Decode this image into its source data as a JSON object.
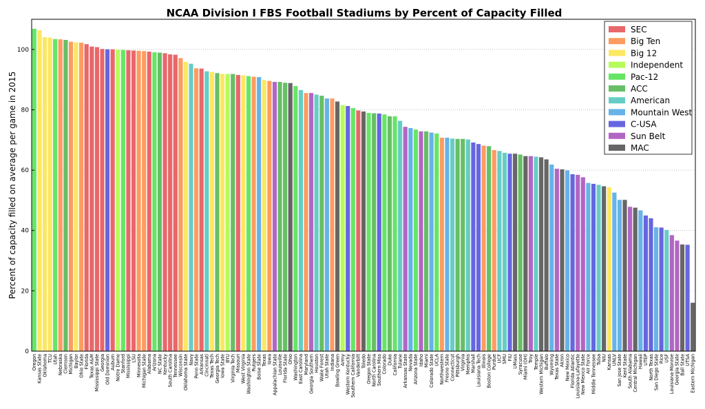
{
  "chart_data": {
    "type": "bar",
    "title": "NCAA Division I FBS Football Stadiums by Percent of Capacity Filled",
    "xlabel": "",
    "ylabel": "Percent of capacity filled on average per game in 2015",
    "ylim": [
      0,
      110
    ],
    "yticks": [
      0,
      20,
      40,
      60,
      80,
      100
    ],
    "grid": "horizontal dotted",
    "legend_placement": "top-right",
    "legend": [
      {
        "name": "SEC",
        "color": "#e8676a"
      },
      {
        "name": "Big Ten",
        "color": "#fd9c61"
      },
      {
        "name": "Big 12",
        "color": "#fce762"
      },
      {
        "name": "Independent",
        "color": "#b5fc5b"
      },
      {
        "name": "Pac-12",
        "color": "#66e566"
      },
      {
        "name": "ACC",
        "color": "#66bf66"
      },
      {
        "name": "American",
        "color": "#66cdc6"
      },
      {
        "name": "Mountain West",
        "color": "#66b3e8"
      },
      {
        "name": "C-USA",
        "color": "#6666e0"
      },
      {
        "name": "Sun Belt",
        "color": "#b266c4"
      },
      {
        "name": "MAC",
        "color": "#666666"
      }
    ],
    "categories": [
      "Oregon",
      "Kansas State",
      "Oklahoma",
      "TCU",
      "Utah",
      "Nebraska",
      "Clemson",
      "Michigan",
      "Baylor",
      "Ohio State",
      "Florida",
      "Texas A&M",
      "Mississippi State",
      "Georgia",
      "Old Dominion",
      "Auburn",
      "Notre Dame",
      "Stanford",
      "Mississippi",
      "LSU",
      "Minnesota",
      "Michigan State",
      "Alabama",
      "Arizona",
      "NC State",
      "Kentucky",
      "South Carolina",
      "Tennessee",
      "Wisconsin",
      "Oklahoma State",
      "Navy",
      "Penn State",
      "Arkansas",
      "Cincinnati",
      "Texas Tech",
      "Georgia Tech",
      "Iowa State",
      "BYU",
      "Virginia Tech",
      "Missouri",
      "West Virginia",
      "Washington State",
      "Rutgers",
      "Boise State",
      "Texas",
      "Iowa",
      "Appalachian State",
      "Louisville",
      "Florida State",
      "Ohio",
      "Washington",
      "East Carolina",
      "Maryland",
      "Georgia Southern",
      "Houston",
      "Wake Forest",
      "Utah State",
      "Indiana",
      "Bowling Green",
      "Army",
      "Western Kentucky",
      "Southern California",
      "Vanderbilt",
      "Toledo",
      "Oregon State",
      "North Carolina",
      "Southern Miss",
      "Colorado",
      "Duke",
      "California",
      "Tulane",
      "Arkansas State",
      "Nevada",
      "Arizona State",
      "Idaho",
      "Miami",
      "Colorado State",
      "UCLA",
      "Northwestern",
      "Fresno State",
      "Connecticut",
      "Pittsburgh",
      "Virginia",
      "Memphis",
      "Marshall",
      "Louisiana Tech",
      "Illinois",
      "Boston College",
      "Purdue",
      "UCF",
      "SMU",
      "FIU",
      "UMass",
      "Syracuse",
      "Miami (OH)",
      "Troy",
      "Temple",
      "Western Michigan",
      "Buffalo",
      "Wyoming",
      "Texas State",
      "Akron",
      "New Mexico",
      "Florida Atlantic",
      "Louisiana-Lafayette",
      "New Mexico State",
      "Air Force",
      "Middle Tennessee",
      "Tulsa",
      "NIU",
      "Kansas",
      "UNLV",
      "San Jose State",
      "Kent State",
      "South Alabama",
      "Central Michigan",
      "Hawaii",
      "UTEP",
      "North Texas",
      "San Diego State",
      "Rice",
      "USF",
      "Louisiana-Monroe",
      "Georgia State",
      "Ball State",
      "UTSA",
      "Eastern Michigan"
    ],
    "values": [
      106.9,
      106.4,
      104.1,
      104.0,
      103.5,
      103.4,
      103.2,
      102.6,
      102.4,
      102.3,
      101.8,
      101.0,
      100.8,
      100.2,
      100.1,
      100.1,
      100.0,
      99.9,
      99.8,
      99.7,
      99.6,
      99.5,
      99.3,
      99.1,
      99.0,
      98.8,
      98.4,
      98.3,
      97.2,
      95.9,
      95.3,
      93.8,
      93.7,
      92.8,
      92.6,
      92.2,
      91.9,
      91.9,
      91.9,
      91.6,
      91.5,
      91.2,
      91.0,
      90.9,
      89.9,
      89.6,
      89.3,
      89.3,
      89.0,
      88.9,
      87.9,
      86.6,
      85.6,
      85.6,
      85.1,
      84.7,
      83.8,
      83.8,
      82.8,
      81.6,
      81.3,
      80.6,
      79.8,
      79.5,
      79.0,
      78.9,
      78.8,
      78.5,
      77.9,
      77.9,
      76.4,
      74.4,
      74.0,
      73.5,
      72.9,
      72.9,
      72.5,
      72.2,
      70.8,
      70.8,
      70.5,
      70.4,
      70.4,
      70.2,
      69.2,
      68.7,
      68.2,
      68.0,
      66.7,
      66.4,
      65.8,
      65.5,
      65.5,
      65.2,
      64.7,
      64.7,
      64.5,
      64.3,
      63.6,
      61.9,
      60.5,
      60.3,
      60.0,
      58.7,
      58.5,
      57.7,
      55.8,
      55.5,
      55.2,
      54.7,
      54.4,
      52.6,
      50.2,
      50.2,
      47.9,
      47.6,
      46.7,
      45.0,
      44.1,
      41.1,
      41.0,
      40.2,
      38.5,
      36.7,
      35.4,
      35.3,
      16.1
    ],
    "conference": [
      "Pac-12",
      "Big 12",
      "Big 12",
      "Big 12",
      "Pac-12",
      "Big Ten",
      "ACC",
      "Big Ten",
      "Big 12",
      "Big Ten",
      "SEC",
      "SEC",
      "SEC",
      "SEC",
      "C-USA",
      "SEC",
      "Independent",
      "Pac-12",
      "SEC",
      "SEC",
      "Big Ten",
      "Big Ten",
      "SEC",
      "Pac-12",
      "ACC",
      "SEC",
      "SEC",
      "SEC",
      "Big Ten",
      "Big 12",
      "American",
      "Big Ten",
      "SEC",
      "American",
      "Big 12",
      "ACC",
      "Big 12",
      "Independent",
      "ACC",
      "SEC",
      "Big 12",
      "Pac-12",
      "Big Ten",
      "Mountain West",
      "Big 12",
      "Big Ten",
      "Sun Belt",
      "ACC",
      "ACC",
      "MAC",
      "Pac-12",
      "American",
      "Big Ten",
      "Sun Belt",
      "American",
      "ACC",
      "Mountain West",
      "Big Ten",
      "MAC",
      "Independent",
      "C-USA",
      "Pac-12",
      "SEC",
      "MAC",
      "Pac-12",
      "ACC",
      "C-USA",
      "Pac-12",
      "ACC",
      "Pac-12",
      "American",
      "Sun Belt",
      "Mountain West",
      "Pac-12",
      "Sun Belt",
      "ACC",
      "Mountain West",
      "Pac-12",
      "Big Ten",
      "Mountain West",
      "American",
      "ACC",
      "ACC",
      "American",
      "C-USA",
      "C-USA",
      "Big Ten",
      "ACC",
      "Big Ten",
      "American",
      "American",
      "C-USA",
      "MAC",
      "ACC",
      "MAC",
      "Sun Belt",
      "American",
      "MAC",
      "MAC",
      "Mountain West",
      "Sun Belt",
      "MAC",
      "Mountain West",
      "C-USA",
      "Sun Belt",
      "Sun Belt",
      "Mountain West",
      "C-USA",
      "American",
      "MAC",
      "Big 12",
      "Mountain West",
      "Mountain West",
      "MAC",
      "Sun Belt",
      "MAC",
      "Mountain West",
      "C-USA",
      "C-USA",
      "Mountain West",
      "C-USA",
      "American",
      "Sun Belt",
      "Sun Belt",
      "MAC",
      "C-USA",
      "MAC"
    ]
  }
}
